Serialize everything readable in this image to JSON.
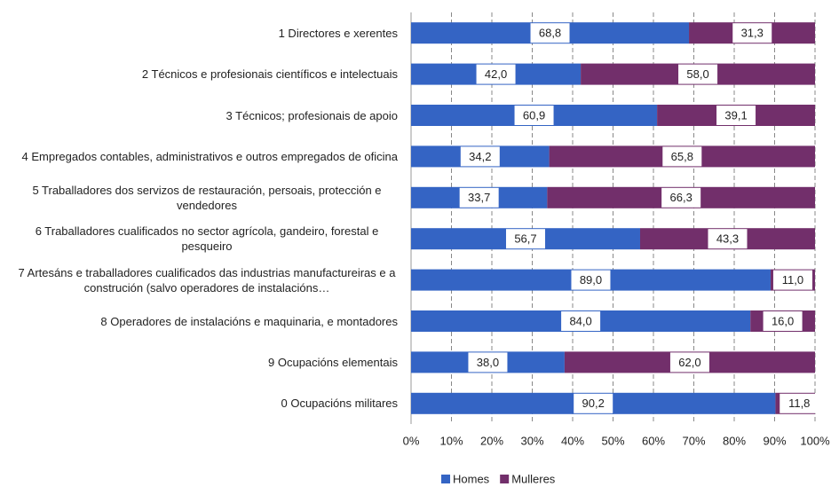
{
  "chart_data": {
    "type": "stacked-bar-horizontal",
    "categories": [
      "1 Directores e xerentes",
      "2 Técnicos e profesionais científicos e intelectuais",
      "3 Técnicos; profesionais de apoio",
      "4 Empregados contables, administrativos e outros empregados de oficina",
      "5 Traballadores dos servizos de restauración, persoais, protección e vendedores",
      "6 Traballadores cualificados no sector agrícola, gandeiro, forestal e pesqueiro",
      "7 Artesáns e traballadores cualificados das industrias manufactureiras e a construción (salvo operadores de instalacións…",
      "8 Operadores de instalacións e maquinaria, e montadores",
      "9 Ocupacións elementais",
      "0 Ocupacións militares"
    ],
    "series": [
      {
        "name": "Homes",
        "color": "#3464c4",
        "values": [
          68.8,
          42.0,
          60.9,
          34.2,
          33.7,
          56.7,
          89.0,
          84.0,
          38.0,
          90.2
        ],
        "value_labels": [
          "68,8",
          "42,0",
          "60,9",
          "34,2",
          "33,7",
          "56,7",
          "89,0",
          "84,0",
          "38,0",
          "90,2"
        ]
      },
      {
        "name": "Mulleres",
        "color": "#722f6b",
        "values": [
          31.3,
          58.0,
          39.1,
          65.8,
          66.3,
          43.3,
          11.0,
          16.0,
          62.0,
          11.8
        ],
        "value_labels": [
          "31,3",
          "58,0",
          "39,1",
          "65,8",
          "66,3",
          "43,3",
          "11,0",
          "16,0",
          "62,0",
          "11,8"
        ]
      }
    ],
    "xlim": [
      0,
      100
    ],
    "xticks": [
      {
        "value": 0,
        "label": "0%"
      },
      {
        "value": 10,
        "label": "10%"
      },
      {
        "value": 20,
        "label": "20%"
      },
      {
        "value": 30,
        "label": "30%"
      },
      {
        "value": 40,
        "label": "40%"
      },
      {
        "value": 50,
        "label": "50%"
      },
      {
        "value": 60,
        "label": "60%"
      },
      {
        "value": 70,
        "label": "70%"
      },
      {
        "value": 80,
        "label": "80%"
      },
      {
        "value": 90,
        "label": "90%"
      },
      {
        "value": 100,
        "label": "100%"
      }
    ],
    "grid": true,
    "legend": "bottom"
  }
}
